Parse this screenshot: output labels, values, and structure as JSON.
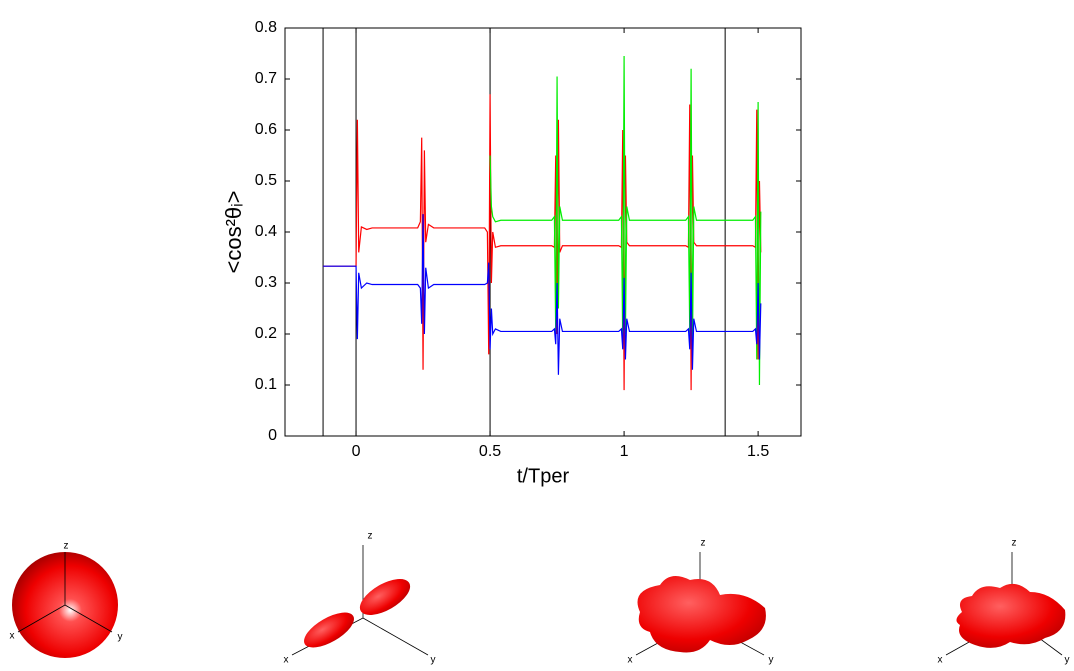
{
  "chart_data": {
    "type": "line",
    "xlabel": "t/Tper",
    "ylabel": "<cos²θᵢ>",
    "x": [
      -0.123,
      -0.001,
      0.0,
      0.005,
      0.01,
      0.02,
      0.04,
      0.06,
      0.23,
      0.24,
      0.245,
      0.25,
      0.255,
      0.26,
      0.27,
      0.29,
      0.48,
      0.49,
      0.495,
      0.5,
      0.505,
      0.51,
      0.52,
      0.54,
      0.73,
      0.74,
      0.745,
      0.75,
      0.755,
      0.76,
      0.77,
      0.98,
      0.99,
      0.995,
      1.0,
      1.005,
      1.01,
      1.02,
      1.23,
      1.24,
      1.245,
      1.25,
      1.255,
      1.26,
      1.27,
      1.48,
      1.49,
      1.495,
      1.5,
      1.505,
      1.51
    ],
    "series": [
      {
        "color": "#ff0000",
        "values": [
          0.333,
          0.333,
          0.333,
          0.62,
          0.36,
          0.41,
          0.405,
          0.408,
          0.408,
          0.42,
          0.585,
          0.13,
          0.56,
          0.38,
          0.415,
          0.408,
          0.408,
          0.4,
          0.16,
          0.67,
          0.3,
          0.4,
          0.37,
          0.373,
          0.373,
          0.37,
          0.55,
          0.2,
          0.62,
          0.36,
          0.373,
          0.373,
          0.37,
          0.6,
          0.09,
          0.55,
          0.38,
          0.373,
          0.373,
          0.37,
          0.65,
          0.09,
          0.55,
          0.38,
          0.373,
          0.373,
          0.37,
          0.64,
          0.15,
          0.5,
          0.36
        ]
      },
      {
        "color": "#00ee00",
        "values": [
          null,
          null,
          null,
          null,
          null,
          null,
          null,
          null,
          null,
          null,
          null,
          null,
          null,
          null,
          null,
          null,
          null,
          null,
          null,
          0.55,
          0.45,
          0.43,
          0.42,
          0.423,
          0.423,
          0.43,
          0.2,
          0.705,
          0.25,
          0.45,
          0.423,
          0.423,
          0.43,
          0.18,
          0.745,
          0.2,
          0.45,
          0.423,
          0.423,
          0.43,
          0.2,
          0.72,
          0.17,
          0.45,
          0.423,
          0.423,
          0.43,
          0.15,
          0.655,
          0.1,
          0.44
        ]
      },
      {
        "color": "#0000ff",
        "values": [
          0.333,
          0.333,
          0.333,
          0.19,
          0.32,
          0.29,
          0.3,
          0.297,
          0.297,
          0.29,
          0.22,
          0.435,
          0.2,
          0.33,
          0.29,
          0.297,
          0.297,
          0.3,
          0.34,
          0.17,
          0.25,
          0.2,
          0.21,
          0.205,
          0.205,
          0.21,
          0.18,
          0.3,
          0.12,
          0.23,
          0.205,
          0.205,
          0.21,
          0.17,
          0.31,
          0.15,
          0.23,
          0.205,
          0.205,
          0.21,
          0.17,
          0.32,
          0.13,
          0.23,
          0.205,
          0.205,
          0.21,
          0.18,
          0.3,
          0.15,
          0.26
        ]
      }
    ],
    "vlines": [
      -0.123,
      0,
      0.5,
      1.377
    ],
    "xlim": [
      -0.265,
      1.66
    ],
    "ylim": [
      0,
      0.8
    ],
    "xticks": [
      0,
      0.5,
      1,
      1.5
    ],
    "yticks": [
      0,
      0.1,
      0.2,
      0.3,
      0.4,
      0.5,
      0.6,
      0.7,
      0.8
    ]
  },
  "panels": [
    {
      "x": "x",
      "y": "y",
      "z": "z"
    },
    {
      "x": "x",
      "y": "y",
      "z": "z"
    },
    {
      "x": "x",
      "y": "y",
      "z": "z"
    },
    {
      "x": "x",
      "y": "y",
      "z": "z"
    }
  ]
}
